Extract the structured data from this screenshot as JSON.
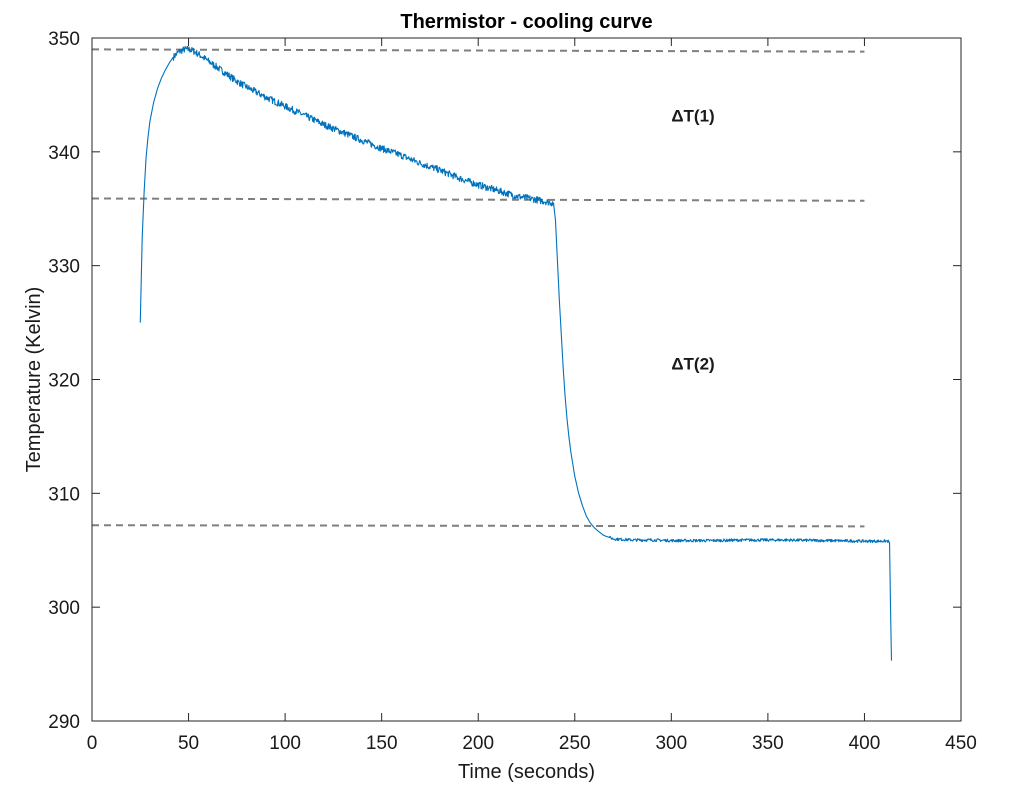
{
  "chart_data": {
    "type": "line",
    "title": "Thermistor - cooling curve",
    "xlabel": "Time (seconds)",
    "ylabel": "Temperature (Kelvin)",
    "xlim": [
      0,
      450
    ],
    "ylim": [
      290,
      350
    ],
    "xticks": [
      0,
      50,
      100,
      150,
      200,
      250,
      300,
      350,
      400,
      450
    ],
    "yticks": [
      290,
      300,
      310,
      320,
      330,
      340,
      350
    ],
    "grid": false,
    "colors": {
      "series": "#0072BD",
      "reference": "#7f7f7f",
      "axes": "#262626"
    },
    "series": [
      {
        "x": [
          25,
          26,
          27,
          28,
          29,
          30,
          32,
          34,
          36,
          38,
          40,
          42,
          45,
          48,
          50,
          52,
          55,
          60,
          65,
          70,
          75,
          80,
          90,
          100,
          110,
          120,
          130,
          140,
          150,
          160,
          170,
          180,
          190,
          200,
          210,
          220,
          230,
          236,
          239,
          240,
          241,
          242,
          243,
          244,
          245,
          246,
          247,
          248,
          250,
          252,
          254,
          256,
          258,
          260,
          262,
          265,
          270,
          275,
          280,
          290,
          300,
          320,
          340,
          360,
          380,
          400,
          410,
          412,
          413,
          413.5,
          414
        ],
        "y": [
          325.0,
          332.5,
          336.5,
          339.5,
          341.3,
          342.7,
          344.4,
          345.6,
          346.5,
          347.2,
          347.8,
          348.3,
          348.8,
          349.0,
          349.0,
          348.9,
          348.6,
          348.0,
          347.4,
          346.8,
          346.2,
          345.7,
          344.8,
          344.0,
          343.2,
          342.4,
          341.7,
          341.0,
          340.3,
          339.7,
          339.0,
          338.4,
          337.7,
          337.1,
          336.6,
          336.1,
          335.8,
          335.6,
          335.5,
          334.0,
          330.5,
          327.0,
          324.0,
          321.0,
          318.5,
          316.5,
          314.9,
          313.6,
          311.5,
          310.0,
          308.9,
          308.0,
          307.4,
          307.0,
          306.7,
          306.3,
          306.0,
          305.95,
          305.9,
          305.9,
          305.85,
          305.85,
          305.9,
          305.9,
          305.85,
          305.8,
          305.8,
          305.8,
          305.7,
          300.0,
          295.3
        ]
      }
    ],
    "reference_lines": [
      {
        "x": [
          0,
          400
        ],
        "y": [
          349.0,
          348.8
        ]
      },
      {
        "x": [
          0,
          400
        ],
        "y": [
          335.9,
          335.7
        ]
      },
      {
        "x": [
          0,
          400
        ],
        "y": [
          307.2,
          307.1
        ]
      }
    ],
    "annotations": [
      {
        "text": "ΔT(1)",
        "x": 300,
        "y": 343.2
      },
      {
        "text": "ΔT(2)",
        "x": 300,
        "y": 321.4
      }
    ]
  }
}
